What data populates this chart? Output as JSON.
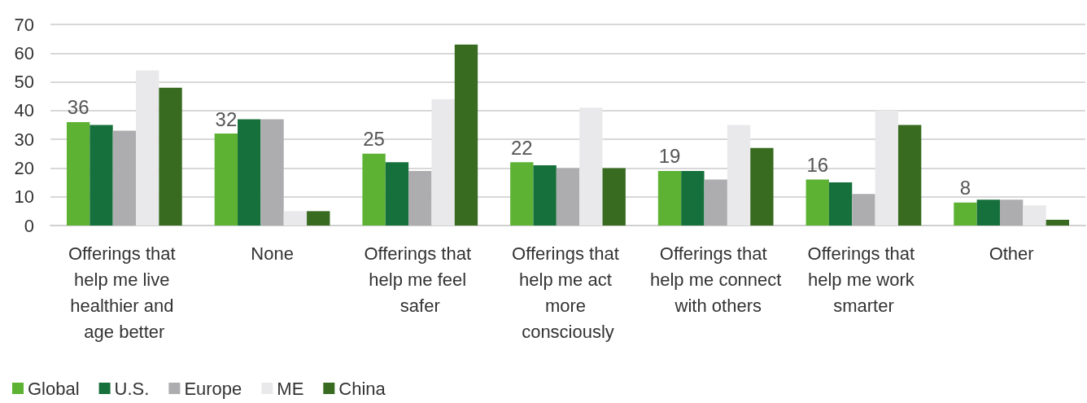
{
  "chart_data": {
    "type": "bar",
    "categories": [
      "Offerings that help me live healthier and age better",
      "None",
      "Offerings that help me feel safer",
      "Offerings that help me act more consciously",
      "Offerings that help me connect with others",
      "Offerings that help me work smarter",
      "Other"
    ],
    "series": [
      {
        "name": "Global",
        "color": "#5db234",
        "values": [
          36,
          32,
          25,
          22,
          19,
          16,
          8
        ],
        "value_labels": [
          "36",
          "32",
          "25",
          "22",
          "19",
          "16",
          "8"
        ]
      },
      {
        "name": "U.S.",
        "color": "#16703b",
        "values": [
          35,
          37,
          22,
          21,
          19,
          15,
          9
        ]
      },
      {
        "name": "Europe",
        "color": "#adadb0",
        "values": [
          33,
          37,
          19,
          20,
          16,
          11,
          9
        ]
      },
      {
        "name": "ME",
        "color": "#e9e9eb",
        "values": [
          54,
          5,
          44,
          41,
          35,
          40,
          7
        ]
      },
      {
        "name": "China",
        "color": "#386b20",
        "values": [
          48,
          5,
          63,
          20,
          27,
          35,
          2
        ]
      }
    ],
    "ylim": [
      0,
      70
    ],
    "yticks": [
      0,
      10,
      20,
      30,
      40,
      50,
      60,
      70
    ],
    "grid": "y",
    "legend": "bottom left"
  }
}
